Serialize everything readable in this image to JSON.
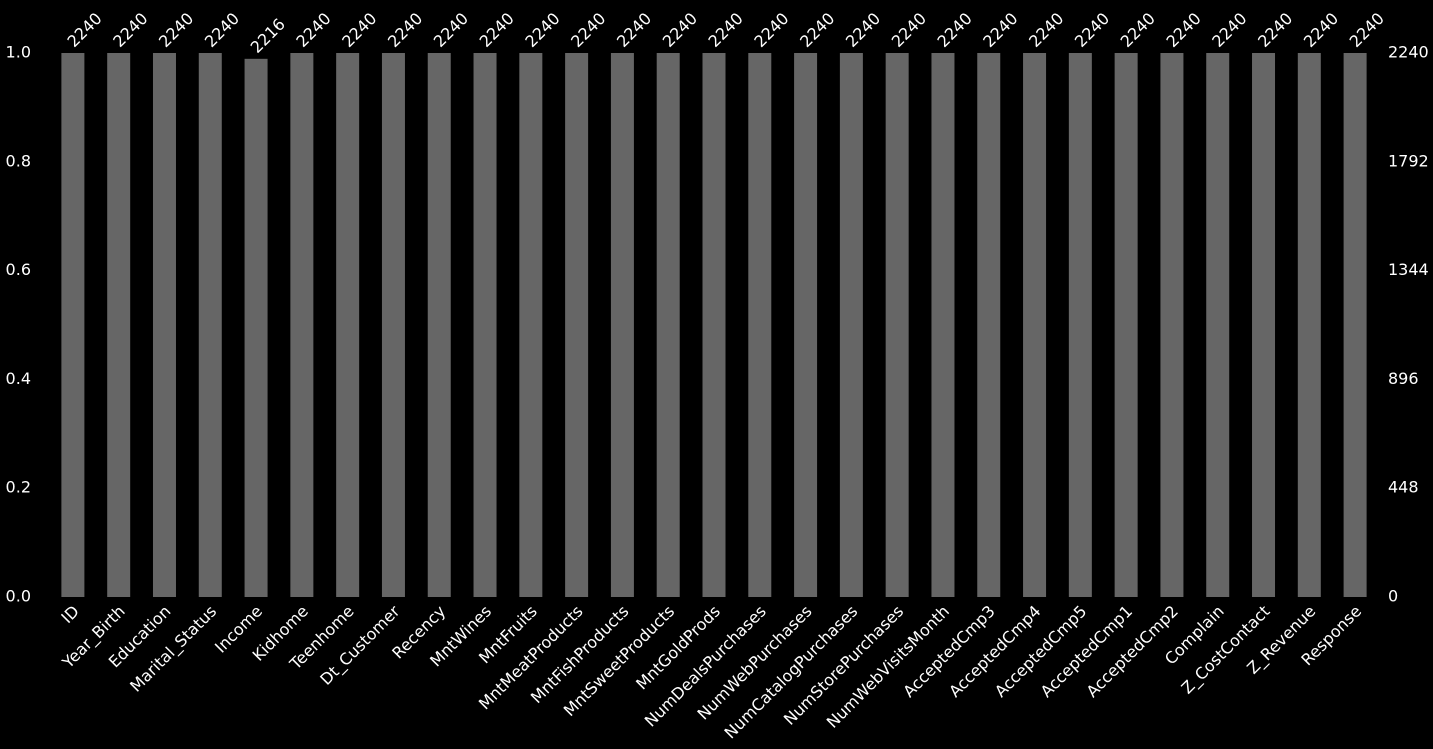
{
  "chart_data": {
    "type": "bar",
    "categories": [
      "ID",
      "Year_Birth",
      "Education",
      "Marital_Status",
      "Income",
      "Kidhome",
      "Teenhome",
      "Dt_Customer",
      "Recency",
      "MntWines",
      "MntFruits",
      "MntMeatProducts",
      "MntFishProducts",
      "MntSweetProducts",
      "MntGoldProds",
      "NumDealsPurchases",
      "NumWebPurchases",
      "NumCatalogPurchases",
      "NumStorePurchases",
      "NumWebVisitsMonth",
      "AcceptedCmp3",
      "AcceptedCmp4",
      "AcceptedCmp5",
      "AcceptedCmp1",
      "AcceptedCmp2",
      "Complain",
      "Z_CostContact",
      "Z_Revenue",
      "Response"
    ],
    "series": [
      {
        "name": "non-null count",
        "color": "#666666",
        "axis": "y2",
        "values": [
          2240,
          2240,
          2240,
          2240,
          2216,
          2240,
          2240,
          2240,
          2240,
          2240,
          2240,
          2240,
          2240,
          2240,
          2240,
          2240,
          2240,
          2240,
          2240,
          2240,
          2240,
          2240,
          2240,
          2240,
          2240,
          2240,
          2240,
          2240,
          2240
        ]
      }
    ],
    "ylim": [
      0,
      1
    ],
    "yticks": [
      {
        "value": 0,
        "label": "0.0"
      },
      {
        "value": 0.2,
        "label": "0.2"
      },
      {
        "value": 0.4,
        "label": "0.4"
      },
      {
        "value": 0.6,
        "label": "0.6"
      },
      {
        "value": 0.8,
        "label": "0.8"
      },
      {
        "value": 1,
        "label": "1.0"
      }
    ],
    "y2lim": [
      0,
      2240
    ],
    "y2ticks": [
      0,
      448,
      896,
      1344,
      1792,
      2240
    ],
    "grid": false
  }
}
